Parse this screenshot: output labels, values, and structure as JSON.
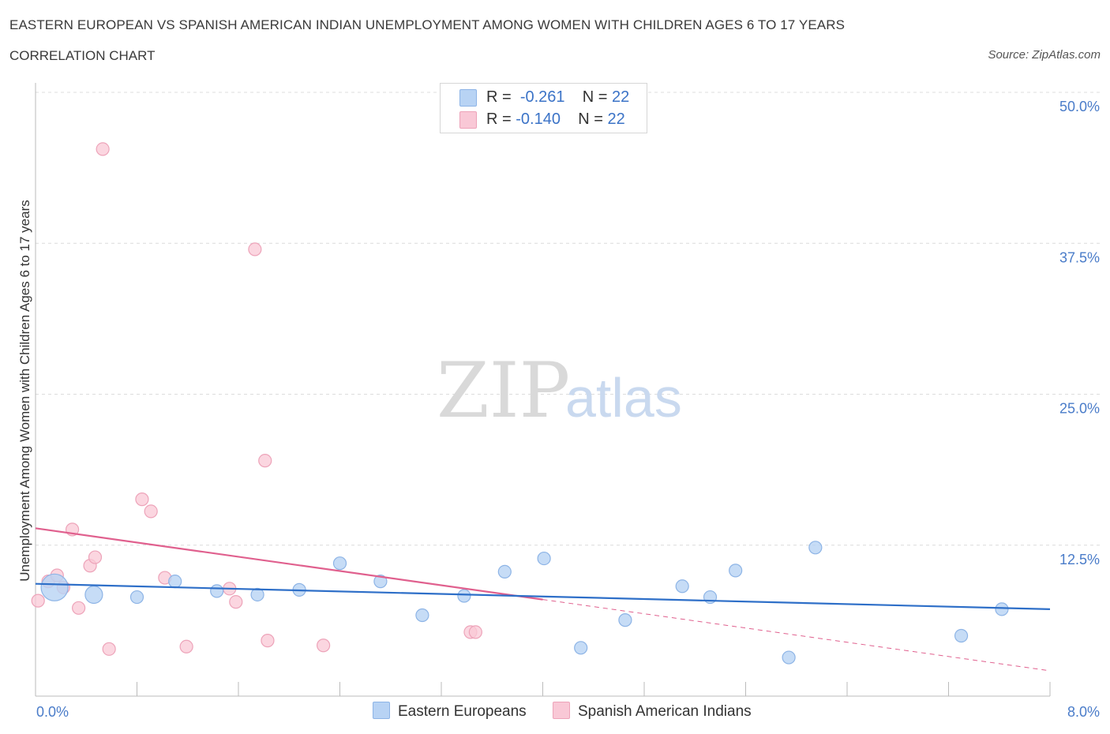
{
  "header": {
    "title": "EASTERN EUROPEAN VS SPANISH AMERICAN INDIAN UNEMPLOYMENT AMONG WOMEN WITH CHILDREN AGES 6 TO 17 YEARS",
    "subtitle": "CORRELATION CHART",
    "source": "Source: ZipAtlas.com"
  },
  "watermark": {
    "zip": "ZIP",
    "atlas": "atlas"
  },
  "legend": {
    "rows": [
      {
        "r_label": "R =",
        "r_value": "-0.261",
        "n_label": "N =",
        "n_value": "22"
      },
      {
        "r_label": "R =",
        "r_value": "-0.140",
        "n_label": "N =",
        "n_value": "22"
      }
    ]
  },
  "bottom_legend": {
    "series1": "Eastern Europeans",
    "series2": "Spanish American Indians"
  },
  "colors": {
    "series1_fill": "#b8d3f4",
    "series1_stroke": "#8db4e6",
    "series1_line": "#2e6fc8",
    "series2_fill": "#f9c8d6",
    "series2_stroke": "#eda3b9",
    "series2_line": "#e0608e",
    "tick_text": "#4a7cc9"
  },
  "chart_data": {
    "type": "scatter",
    "title": "EASTERN EUROPEAN VS SPANISH AMERICAN INDIAN UNEMPLOYMENT AMONG WOMEN WITH CHILDREN AGES 6 TO 17 YEARS",
    "xlabel": "",
    "ylabel": "Unemployment Among Women with Children Ages 6 to 17 years",
    "xlim": [
      0,
      8
    ],
    "ylim": [
      0,
      50
    ],
    "x_tick_labels": [
      "0.0%",
      "8.0%"
    ],
    "y_tick_values": [
      12.5,
      25.0,
      37.5,
      50.0
    ],
    "y_tick_labels": [
      "12.5%",
      "25.0%",
      "37.5%",
      "50.0%"
    ],
    "grid": true,
    "series": [
      {
        "name": "Eastern Europeans",
        "points": [
          {
            "x": 0.15,
            "y": 9.0,
            "size": "large"
          },
          {
            "x": 0.46,
            "y": 8.4,
            "size": "medium"
          },
          {
            "x": 0.8,
            "y": 8.2
          },
          {
            "x": 1.1,
            "y": 9.5
          },
          {
            "x": 1.43,
            "y": 8.7
          },
          {
            "x": 1.75,
            "y": 8.4
          },
          {
            "x": 2.08,
            "y": 8.8
          },
          {
            "x": 2.4,
            "y": 11.0
          },
          {
            "x": 2.72,
            "y": 9.5
          },
          {
            "x": 3.05,
            "y": 6.7
          },
          {
            "x": 3.38,
            "y": 8.3
          },
          {
            "x": 3.7,
            "y": 10.3
          },
          {
            "x": 4.01,
            "y": 11.4
          },
          {
            "x": 4.3,
            "y": 4.0
          },
          {
            "x": 4.65,
            "y": 6.3
          },
          {
            "x": 5.1,
            "y": 9.1
          },
          {
            "x": 5.32,
            "y": 8.2
          },
          {
            "x": 5.52,
            "y": 10.4
          },
          {
            "x": 5.94,
            "y": 3.2
          },
          {
            "x": 6.15,
            "y": 12.3
          },
          {
            "x": 7.3,
            "y": 5.0
          },
          {
            "x": 7.62,
            "y": 7.2
          }
        ],
        "trend": {
          "x": [
            0,
            8
          ],
          "y": [
            9.3,
            7.2
          ]
        }
      },
      {
        "name": "Spanish American Indians",
        "points": [
          {
            "x": 0.02,
            "y": 7.9
          },
          {
            "x": 0.1,
            "y": 9.5
          },
          {
            "x": 0.17,
            "y": 10.0
          },
          {
            "x": 0.22,
            "y": 9.0
          },
          {
            "x": 0.29,
            "y": 13.8
          },
          {
            "x": 0.34,
            "y": 7.3
          },
          {
            "x": 0.43,
            "y": 10.8
          },
          {
            "x": 0.47,
            "y": 11.5
          },
          {
            "x": 0.53,
            "y": 45.3
          },
          {
            "x": 0.58,
            "y": 3.9
          },
          {
            "x": 0.84,
            "y": 16.3
          },
          {
            "x": 0.91,
            "y": 15.3
          },
          {
            "x": 1.02,
            "y": 9.8
          },
          {
            "x": 1.19,
            "y": 4.1
          },
          {
            "x": 1.53,
            "y": 8.9
          },
          {
            "x": 1.58,
            "y": 7.8
          },
          {
            "x": 1.73,
            "y": 37.0
          },
          {
            "x": 1.81,
            "y": 19.5
          },
          {
            "x": 1.83,
            "y": 4.6
          },
          {
            "x": 2.27,
            "y": 4.2
          },
          {
            "x": 3.43,
            "y": 5.3
          },
          {
            "x": 3.47,
            "y": 5.3
          }
        ],
        "trend": {
          "x": [
            0,
            4.0
          ],
          "y": [
            13.9,
            8.0
          ]
        },
        "trend_extension": {
          "x": [
            4.0,
            8
          ],
          "y": [
            8.0,
            2.1
          ]
        }
      }
    ]
  }
}
